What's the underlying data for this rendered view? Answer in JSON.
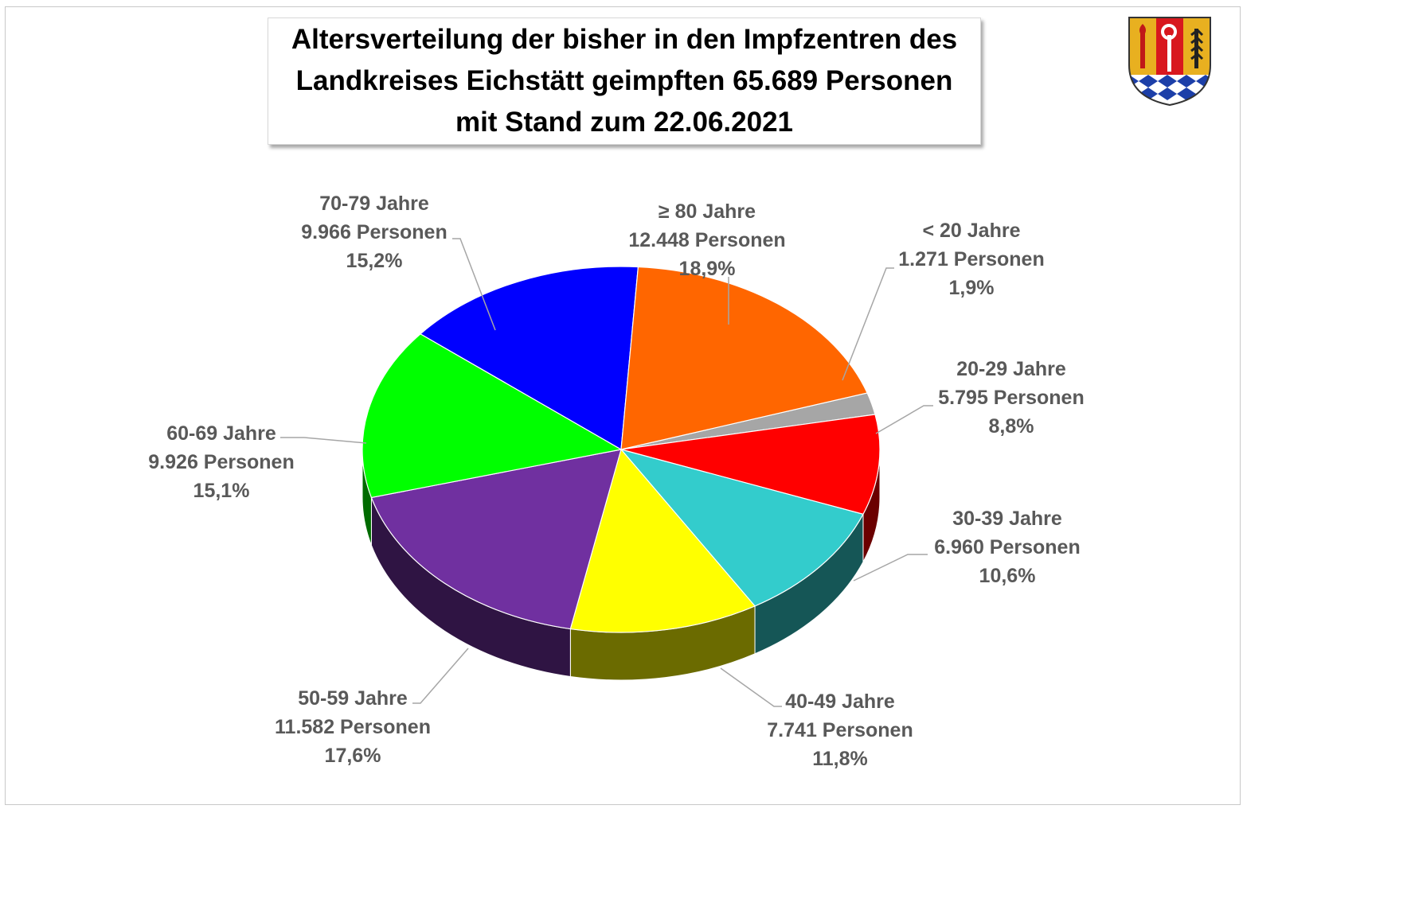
{
  "title": {
    "line1": "Altersverteilung der bisher in den Impfzentren des",
    "line2": "Landkreises Eichstätt geimpften 65.689 Personen",
    "line3": "mit Stand zum 22.06.2021"
  },
  "logo": {
    "icon": "eichstaett-coat-of-arms-icon"
  },
  "colors": {
    "background": "#ffffff",
    "label": "#595959",
    "leader": "#a6a6a6"
  },
  "chart_data": {
    "type": "pie",
    "style": "3d",
    "title": "Altersverteilung der bisher in den Impfzentren des Landkreises Eichstätt geimpften 65.689 Personen mit Stand zum 22.06.2021",
    "total": 65689,
    "slices": [
      {
        "category": "< 20 Jahre",
        "value": 1271,
        "persons_label": "1.271 Personen",
        "percent_label": "1,9%",
        "color": "#a6a6a6"
      },
      {
        "category": "20-29 Jahre",
        "value": 5795,
        "persons_label": "5.795 Personen",
        "percent_label": "8,8%",
        "color": "#ff0000"
      },
      {
        "category": "30-39 Jahre",
        "value": 6960,
        "persons_label": "6.960 Personen",
        "percent_label": "10,6%",
        "color": "#33cccc"
      },
      {
        "category": "40-49 Jahre",
        "value": 7741,
        "persons_label": "7.741 Personen",
        "percent_label": "11,8%",
        "color": "#ffff00"
      },
      {
        "category": "50-59 Jahre",
        "value": 11582,
        "persons_label": "11.582 Personen",
        "percent_label": "17,6%",
        "color": "#7030a0"
      },
      {
        "category": "60-69 Jahre",
        "value": 9926,
        "persons_label": "9.926 Personen",
        "percent_label": "15,1%",
        "color": "#00ff00"
      },
      {
        "category": "70-79 Jahre",
        "value": 9966,
        "persons_label": "9.966 Personen",
        "percent_label": "15,2%",
        "color": "#0000ff"
      },
      {
        "category": "≥ 80 Jahre",
        "value": 12448,
        "persons_label": "12.448 Personen",
        "percent_label": "18,9%",
        "color": "#ff6600"
      }
    ],
    "legend": false
  }
}
